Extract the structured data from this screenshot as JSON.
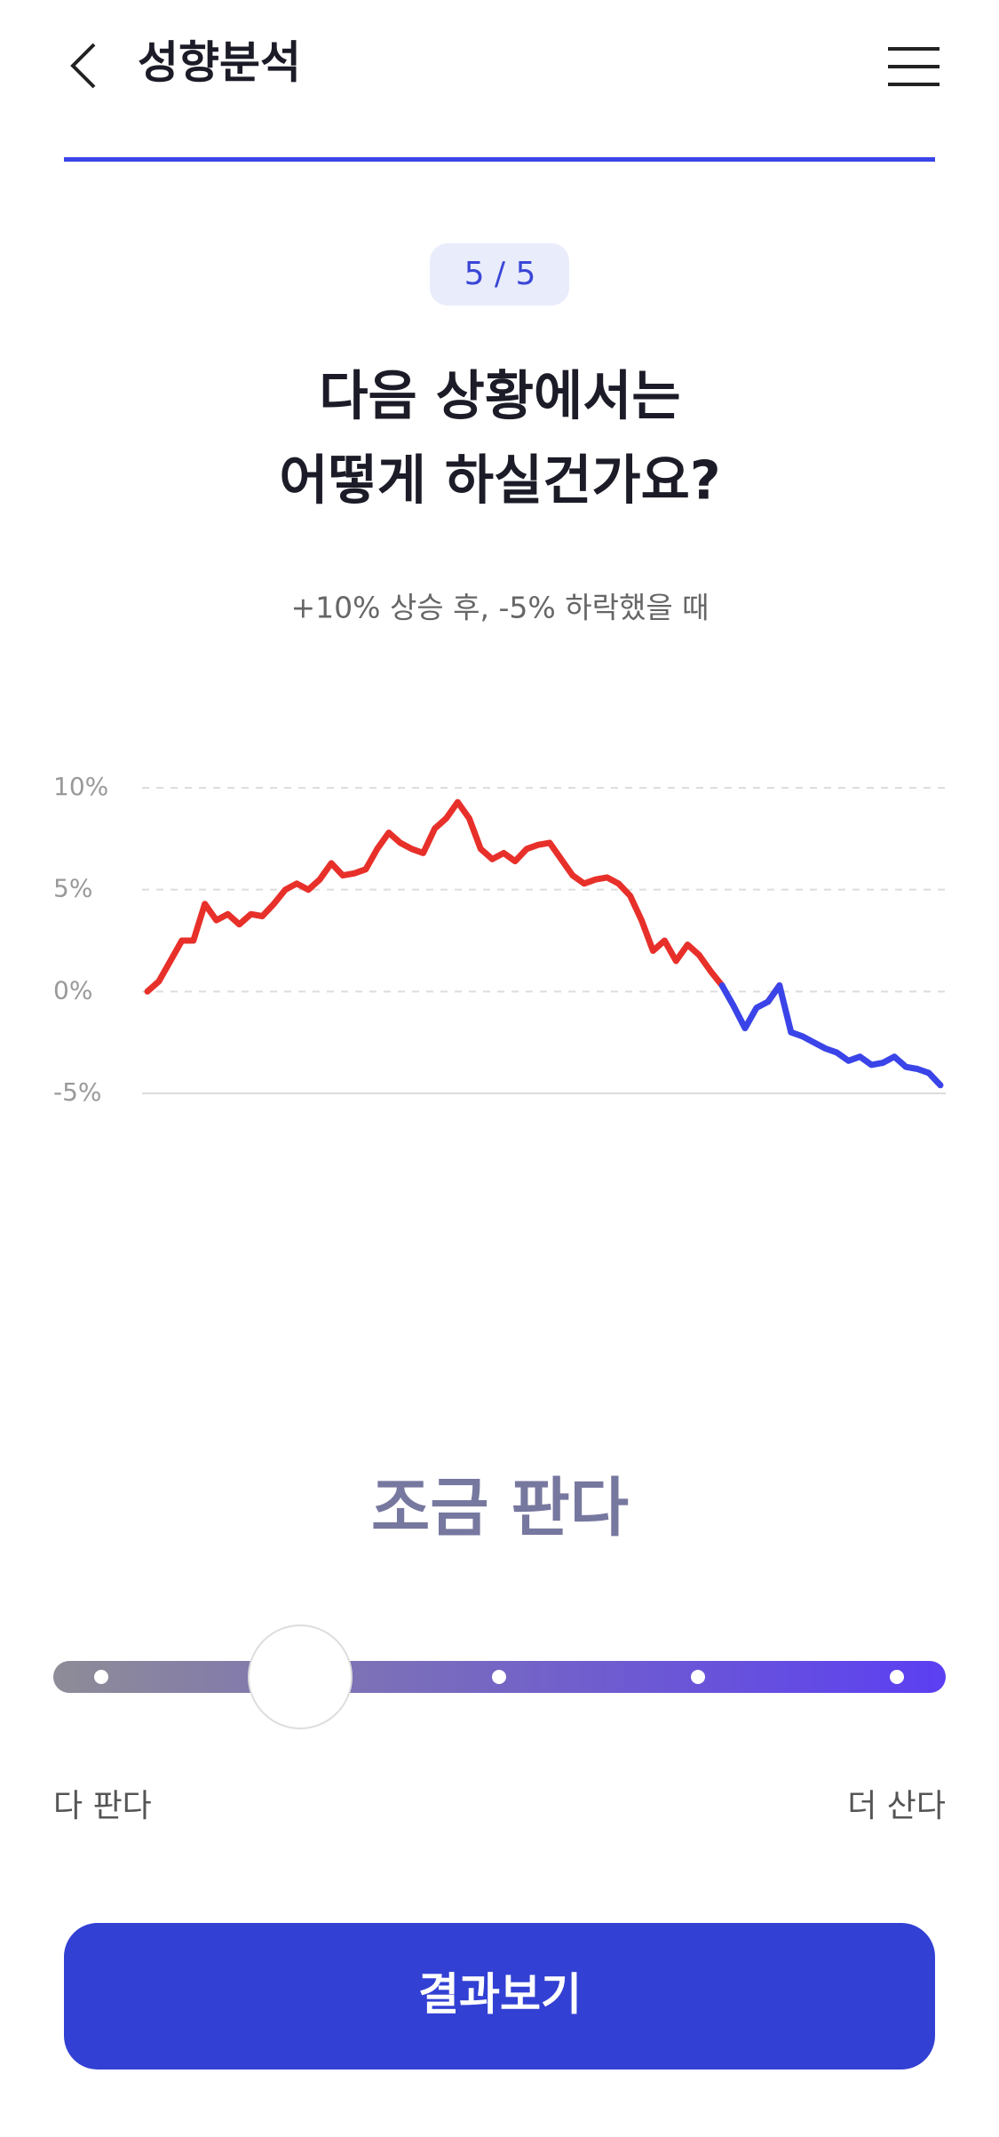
{
  "header": {
    "title": "성향분석"
  },
  "progress": "5 / 5",
  "question": {
    "line1": "다음 상황에서는",
    "line2": "어떻게 하실건가요?",
    "subtitle": "+10% 상승 후, -5% 하락했을 때"
  },
  "chart_data": {
    "type": "line",
    "ylim": [
      -5,
      10
    ],
    "yticks": [
      {
        "value": 10,
        "label": "10%"
      },
      {
        "value": 5,
        "label": "5%"
      },
      {
        "value": 0,
        "label": "0%"
      },
      {
        "value": -5,
        "label": "-5%"
      }
    ],
    "grid": true,
    "series": [
      {
        "color": "#e8302a",
        "values": [
          0,
          0.5,
          1.5,
          2.5,
          2.5,
          4.3,
          3.5,
          3.8,
          3.3,
          3.8,
          3.7,
          4.3,
          5,
          5.3,
          5.0,
          5.5,
          6.3,
          5.7,
          5.8,
          6.0,
          7.0,
          7.8,
          7.3,
          7.0,
          6.8,
          8.0,
          8.5,
          9.3,
          8.5,
          7.0,
          6.5,
          6.8,
          6.4,
          7.0,
          7.2,
          7.3,
          6.5,
          5.7,
          5.3,
          5.5,
          5.6,
          5.3,
          4.7,
          3.5,
          2.0,
          2.5,
          1.5,
          2.3,
          1.8,
          1.0,
          0.3,
          null,
          null,
          null,
          -0.5,
          0.3,
          null,
          null,
          null,
          null,
          null,
          null,
          null,
          null,
          null,
          null,
          null,
          null,
          null,
          null
        ]
      },
      {
        "color": "#3a44e8",
        "values": [
          null,
          null,
          null,
          null,
          null,
          null,
          null,
          null,
          null,
          null,
          null,
          null,
          null,
          null,
          null,
          null,
          null,
          null,
          null,
          null,
          null,
          null,
          null,
          null,
          null,
          null,
          null,
          null,
          null,
          null,
          null,
          null,
          null,
          null,
          null,
          null,
          null,
          null,
          null,
          null,
          null,
          null,
          null,
          null,
          null,
          null,
          null,
          null,
          null,
          null,
          0.3,
          -0.7,
          -1.8,
          -0.8,
          -0.5,
          0.3,
          -2.0,
          -2.2,
          -2.5,
          -2.8,
          -3.0,
          -3.4,
          -3.2,
          -3.6,
          -3.5,
          -3.2,
          -3.7,
          -3.8,
          -4.0,
          -4.6
        ]
      }
    ]
  },
  "answer": "조금 판다",
  "slider": {
    "stops": 5,
    "selected": 1,
    "min_label": "다 판다",
    "max_label": "더 산다"
  },
  "button": "결과보기"
}
